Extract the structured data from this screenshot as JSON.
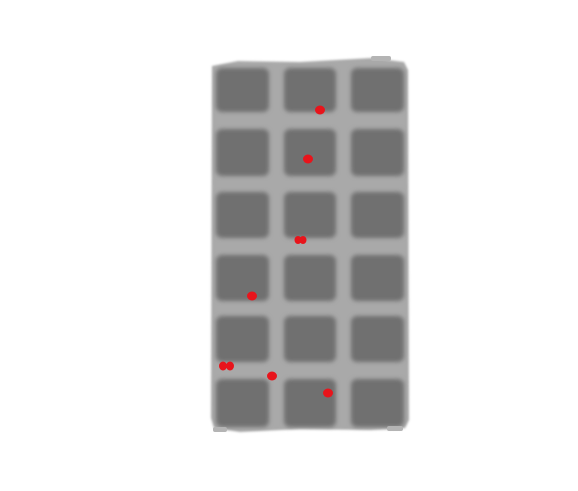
{
  "image": {
    "subject": "grayscale-grid-panel",
    "grid": {
      "columns": 3,
      "rows": 6
    },
    "colors": {
      "background": "#ffffff",
      "panel": "#a9a9a9",
      "cell": "#6f6f6f",
      "marker": "#e8141b"
    },
    "marker_count": 9
  }
}
